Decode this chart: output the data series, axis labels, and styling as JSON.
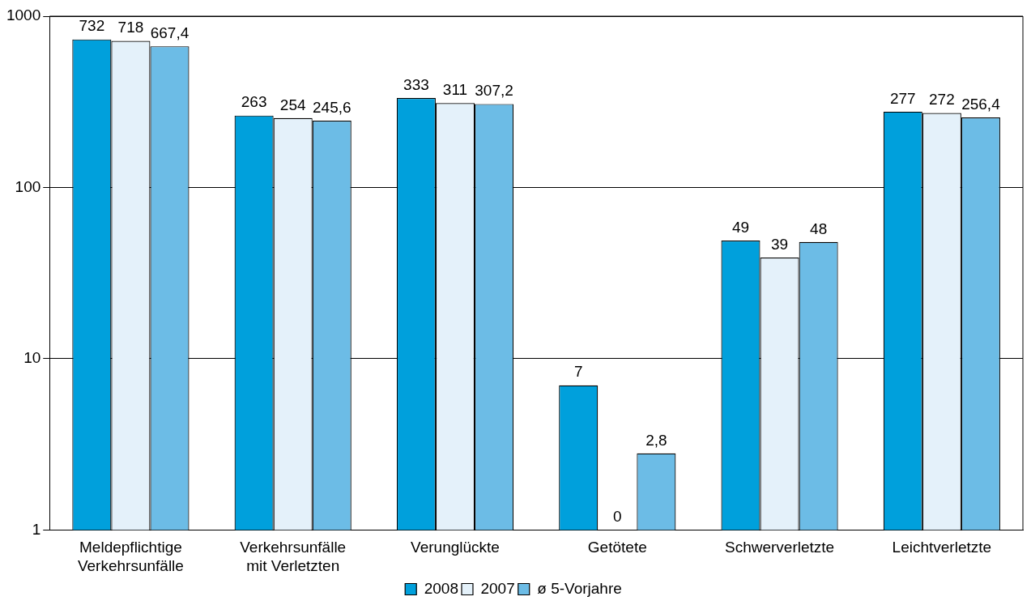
{
  "chart_data": {
    "type": "bar",
    "categories": [
      "Meldepflichtige Verkehrsunfälle",
      "Verkehrsunfälle mit Verletzten",
      "Verunglückte",
      "Getötete",
      "Schwerverletzte",
      "Leichtverletzte"
    ],
    "series": [
      {
        "name": "2008",
        "color": "#00a0dc",
        "values": [
          732,
          263,
          333,
          7,
          49,
          277
        ],
        "value_labels": [
          "732",
          "263",
          "333",
          "7",
          "49",
          "277"
        ]
      },
      {
        "name": "2007",
        "color": "#e4f1fa",
        "values": [
          718,
          254,
          311,
          null,
          39,
          272
        ],
        "value_labels": [
          "718",
          "254",
          "311",
          "0",
          "39",
          "272"
        ]
      },
      {
        "name": "ø 5-Vorjahre",
        "color": "#6cbce6",
        "values": [
          667.4,
          245.6,
          307.2,
          2.8,
          48,
          256.4
        ],
        "value_labels": [
          "667,4",
          "245,6",
          "307,2",
          "2,8",
          "48",
          "256,4"
        ]
      }
    ],
    "log": "y",
    "ylim": [
      1,
      1000
    ],
    "yticks": [
      1,
      10,
      100,
      1000
    ],
    "grid": "y",
    "legend": "bottom"
  }
}
